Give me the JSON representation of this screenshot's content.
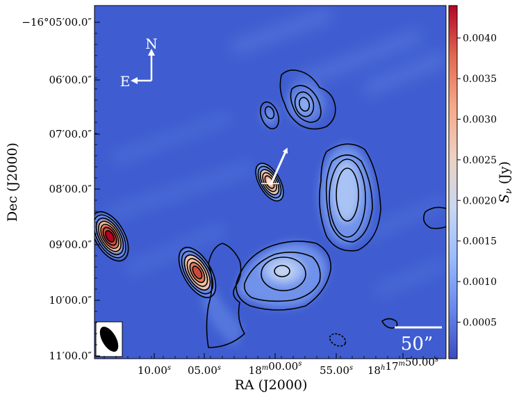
{
  "axes": {
    "xlabel": "RA (J2000)",
    "ylabel": "Dec (J2000)",
    "colorbar_label": "S",
    "colorbar_label_sub": "ν",
    "colorbar_label_unit": " (Jy)"
  },
  "x_ticks": [
    "10.00",
    "05.00",
    "18",
    "00.00",
    "55.00",
    "18",
    "17",
    "50.00"
  ],
  "x_tick_groups": [
    {
      "main": "10.00",
      "sup": "s"
    },
    {
      "main": "05.00",
      "sup": "s"
    },
    {
      "pre": "18",
      "pre_sup": "m",
      "main": "00.00",
      "sup": "s"
    },
    {
      "main": "55.00",
      "sup": "s"
    },
    {
      "pre": "18",
      "pre_sup": "h",
      "mid": "17",
      "mid_sup": "m",
      "main": "50.00",
      "sup": "s"
    }
  ],
  "y_ticks": [
    {
      "text": "−16°05′00.0″"
    },
    {
      "text": "06′00.0″"
    },
    {
      "text": "07′00.0″"
    },
    {
      "text": "08′00.0″"
    },
    {
      "text": "09′00.0″"
    },
    {
      "text": "10′00.0″"
    },
    {
      "text": "11′00.0″"
    }
  ],
  "colorbar": {
    "ticks": [
      "0.0005",
      "0.0010",
      "0.0015",
      "0.0020",
      "0.0025",
      "0.0030",
      "0.0035",
      "0.0040"
    ],
    "values": [
      0.0005,
      0.001,
      0.0015,
      0.002,
      0.0025,
      0.003,
      0.0035,
      0.004
    ],
    "range": [
      5e-05,
      0.0044
    ],
    "colormap": [
      "#3b4cc0",
      "#6788ee",
      "#9abbff",
      "#c9d7f0",
      "#edd1c2",
      "#f7a889",
      "#e26952",
      "#b40426"
    ]
  },
  "compass": {
    "north": "N",
    "east": "E"
  },
  "scale_bar": {
    "label": "50”"
  },
  "background_color": "#3f5dd0"
}
